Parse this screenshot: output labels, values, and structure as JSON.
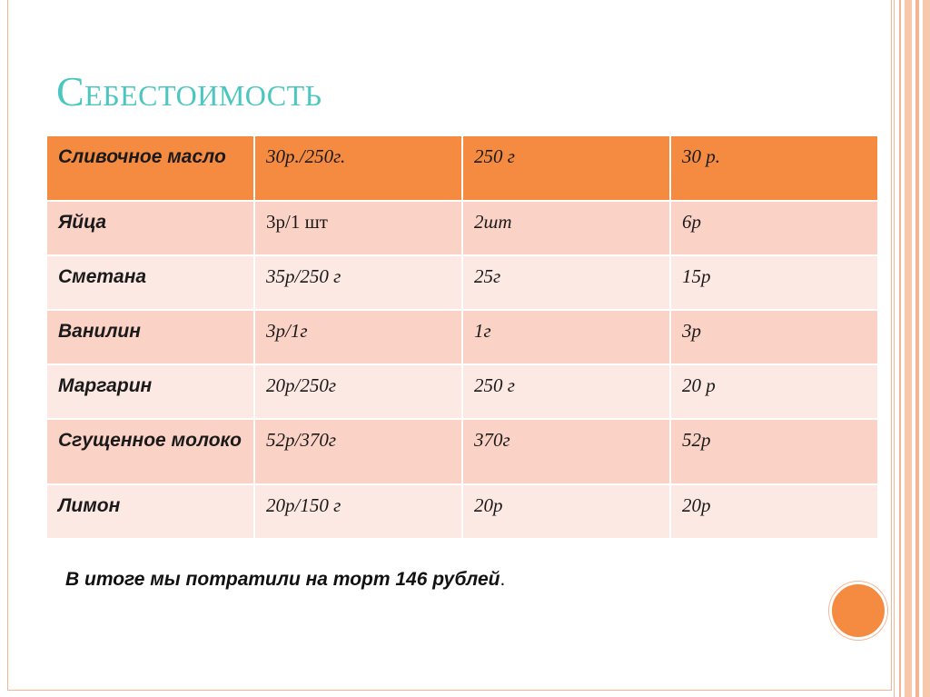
{
  "slide": {
    "title": "Себестоимость",
    "summary_text": "В итоге мы потратили на торт 146 рублей",
    "summary_end": ".",
    "accent_color": "#f58b40",
    "title_color": "#4bc7c0"
  },
  "table": {
    "rows": [
      {
        "name": "Сливочное масло",
        "price": "30р./250г.",
        "amount": "250 г",
        "cost": "30 р."
      },
      {
        "name": "Яйца",
        "price": "3р/1 шт",
        "amount": "2шт",
        "cost": "6р"
      },
      {
        "name": "Сметана",
        "price": "35р/250 г",
        "amount": "25г",
        "cost": "15р"
      },
      {
        "name": "Ванилин",
        "price": "3р/1г",
        "amount": "1г",
        "cost": "3р"
      },
      {
        "name": "Маргарин",
        "price": "20р/250г",
        "amount": "250 г",
        "cost": "20 р"
      },
      {
        "name": "Сгущенное молоко",
        "price": "52р/370г",
        "amount": "370г",
        "cost": "52р"
      },
      {
        "name": "Лимон",
        "price": "20р/150 г",
        "amount": "20р",
        "cost": "20р"
      }
    ]
  }
}
